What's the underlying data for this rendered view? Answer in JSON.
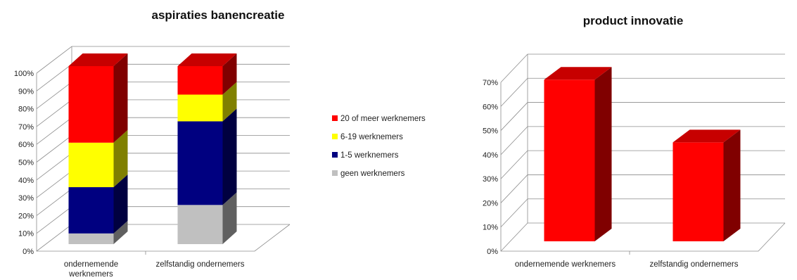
{
  "chart_data": [
    {
      "type": "bar",
      "stacked": true,
      "three_d": true,
      "title": "aspiraties banencreatie",
      "categories": [
        "ondernemende werknemers",
        "zelfstandig ondernemers"
      ],
      "category_lines": [
        [
          "ondernemende",
          "werknemers"
        ],
        [
          "zelfstandig ondernemers"
        ]
      ],
      "series": [
        {
          "name": "geen werknemers",
          "values": [
            6,
            22
          ],
          "color": "#C0C0C0"
        },
        {
          "name": "1-5 werknemers",
          "values": [
            26,
            47
          ],
          "color": "#000080"
        },
        {
          "name": "6-19 werknemers",
          "values": [
            25,
            15
          ],
          "color": "#FFFF00"
        },
        {
          "name": "20 of meer werknemers",
          "values": [
            43,
            16
          ],
          "color": "#FF0000"
        }
      ],
      "legend_order": [
        "20 of meer werknemers",
        "6-19 werknemers",
        "1-5 werknemers",
        "geen werknemers"
      ],
      "legend_position": "right",
      "ylim": [
        0,
        100
      ],
      "yticks": [
        "0%",
        "10%",
        "20%",
        "30%",
        "40%",
        "50%",
        "60%",
        "70%",
        "80%",
        "90%",
        "100%"
      ],
      "grid": true
    },
    {
      "type": "bar",
      "three_d": true,
      "title": "product innovatie",
      "categories": [
        "ondernemende werknemers",
        "zelfstandig ondernemers"
      ],
      "category_lines": [
        [
          "ondernemende werknemers"
        ],
        [
          "zelfstandig ondernemers"
        ]
      ],
      "series": [
        {
          "values": [
            67,
            41
          ],
          "color": "#FF0000"
        }
      ],
      "ylim": [
        0,
        70
      ],
      "yticks": [
        "0%",
        "10%",
        "20%",
        "30%",
        "40%",
        "50%",
        "60%",
        "70%"
      ],
      "grid": true
    }
  ]
}
